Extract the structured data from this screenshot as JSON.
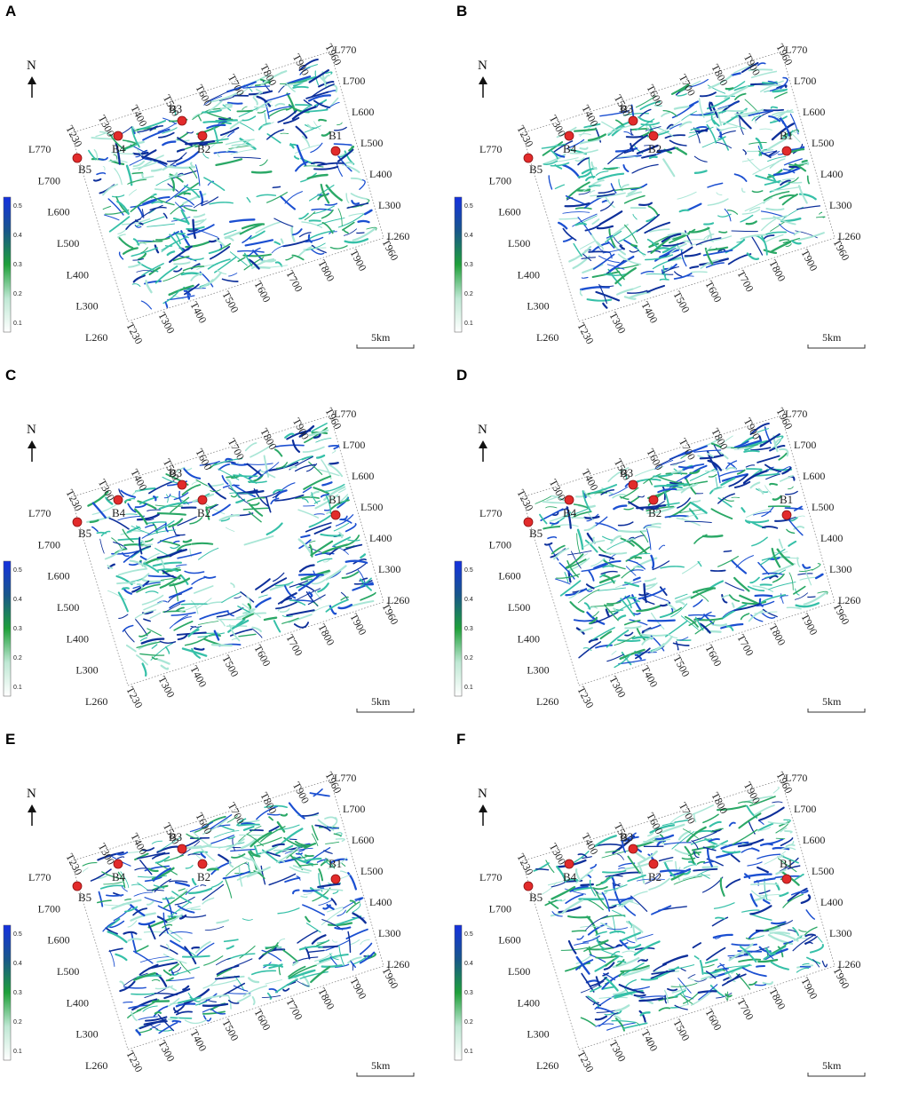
{
  "colors": {
    "blue": "#1b4fd1",
    "navy": "#0d2f9a",
    "green": "#2aa866",
    "teal": "#36c0a8",
    "pale": "#a9e6d6",
    "well": "#e22b2b"
  },
  "colorbar": {
    "ticks": [
      "0.5",
      "0.4",
      "0.3",
      "0.2",
      "0.1"
    ],
    "colors": [
      "#1530e0",
      "#18568a",
      "#1fa03a",
      "#bfe8d4",
      "#ffffff"
    ]
  },
  "north_label": "N",
  "scale_label": "5km",
  "top_labels": [
    "T230",
    "T300",
    "T400",
    "T500",
    "T600",
    "T700",
    "T800",
    "T900",
    "T960"
  ],
  "bottom_labels": [
    "T230",
    "T300",
    "T400",
    "T500",
    "T600",
    "T700",
    "T800",
    "T900",
    "T960"
  ],
  "left_labels": [
    "L770",
    "L700",
    "L600",
    "L500",
    "L400",
    "L300",
    "L260"
  ],
  "right_labels": [
    "L770",
    "L700",
    "L600",
    "L500",
    "L400",
    "L300",
    "L260"
  ],
  "panels": [
    {
      "id": "A",
      "wells": [
        "B1",
        "B2",
        "B3",
        "B4",
        "B5"
      ]
    },
    {
      "id": "B",
      "wells": [
        "B1",
        "B2",
        "B3",
        "B4",
        "B5"
      ]
    },
    {
      "id": "C",
      "wells": [
        "B1",
        "B2",
        "B3",
        "B4",
        "B5"
      ]
    },
    {
      "id": "D",
      "wells": [
        "B1",
        "B2",
        "B3",
        "B4",
        "B5"
      ]
    },
    {
      "id": "E",
      "wells": [
        "B1",
        "B2",
        "B3",
        "B4",
        "B5"
      ]
    },
    {
      "id": "F",
      "wells": [
        "B1",
        "B2",
        "B3",
        "B4",
        "B5"
      ]
    }
  ]
}
